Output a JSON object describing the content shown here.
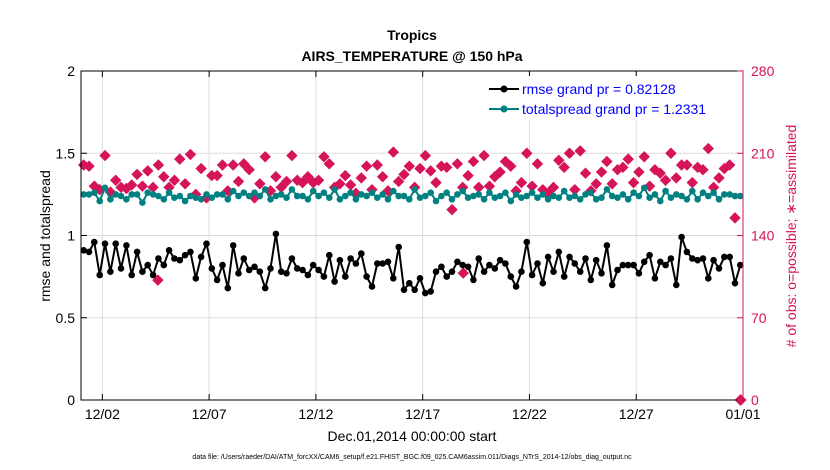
{
  "chart_data": {
    "type": "line",
    "title": "Tropics",
    "subtitle": "AIRS_TEMPERATURE @ 150 hPa",
    "xlabel": "Dec.01,2014 00:00:00 start",
    "ylabel_left": "rmse and totalspread",
    "ylabel_right": "# of obs: o=possible; ∗=assimilated",
    "footnote": "data file: /Users/raeder/DAI/ATM_forcXX/CAM6_setup/f.e21.FHIST_BGC.f09_025.CAM6assim.011/Diags_NTrS_2014-12/obs_diag_output.nc",
    "xlim": [
      0,
      31
    ],
    "ylim_left": [
      0,
      2
    ],
    "ylim_right": [
      0,
      280
    ],
    "x_ticks": [
      1,
      6,
      11,
      16,
      21,
      26,
      31
    ],
    "x_tick_labels": [
      "12/02",
      "12/07",
      "12/12",
      "12/17",
      "12/22",
      "12/27",
      "01/01"
    ],
    "y_left_ticks": [
      0,
      0.5,
      1,
      1.5,
      2
    ],
    "y_left_tick_labels": [
      "0",
      "0.5",
      "1",
      "1.5",
      "2"
    ],
    "y_right_ticks": [
      0,
      70,
      140,
      210,
      280
    ],
    "y_right_tick_labels": [
      "0",
      "70",
      "140",
      "210",
      "280"
    ],
    "grid": true,
    "legend_position": "top-right",
    "colors": {
      "rmse": "#000000",
      "totalspread": "#008080",
      "obs": "#d6145a",
      "right_axis": "#d6145a"
    },
    "series": [
      {
        "name": "rmse grand pr = 0.82128",
        "axis": "left",
        "x": [
          0.125,
          0.375,
          0.625,
          0.875,
          1.125,
          1.375,
          1.625,
          1.875,
          2.125,
          2.375,
          2.625,
          2.875,
          3.125,
          3.375,
          3.625,
          3.875,
          4.125,
          4.375,
          4.625,
          4.875,
          5.125,
          5.375,
          5.625,
          5.875,
          6.125,
          6.375,
          6.625,
          6.875,
          7.125,
          7.375,
          7.625,
          7.875,
          8.125,
          8.375,
          8.625,
          8.875,
          9.125,
          9.375,
          9.625,
          9.875,
          10.125,
          10.375,
          10.625,
          10.875,
          11.125,
          11.375,
          11.625,
          11.875,
          12.125,
          12.375,
          12.625,
          12.875,
          13.125,
          13.375,
          13.625,
          13.875,
          14.125,
          14.375,
          14.625,
          14.875,
          15.125,
          15.375,
          15.625,
          15.875,
          16.125,
          16.375,
          16.625,
          16.875,
          17.125,
          17.375,
          17.625,
          17.875,
          18.125,
          18.375,
          18.625,
          18.875,
          19.125,
          19.375,
          19.625,
          19.875,
          20.125,
          20.375,
          20.625,
          20.875,
          21.125,
          21.375,
          21.625,
          21.875,
          22.125,
          22.375,
          22.625,
          22.875,
          23.125,
          23.375,
          23.625,
          23.875,
          24.125,
          24.375,
          24.625,
          24.875,
          25.125,
          25.375,
          25.625,
          25.875,
          26.125,
          26.375,
          26.625,
          26.875,
          27.125,
          27.375,
          27.625,
          27.875,
          28.125,
          28.375,
          28.625,
          28.875,
          29.125,
          29.375,
          29.625,
          29.875,
          30.125,
          30.375,
          30.625,
          30.875
        ],
        "values": [
          0.91,
          0.9,
          0.96,
          0.76,
          0.95,
          0.78,
          0.95,
          0.8,
          0.94,
          0.76,
          0.9,
          0.78,
          0.82,
          0.76,
          0.86,
          0.82,
          0.91,
          0.86,
          0.85,
          0.88,
          0.9,
          0.74,
          0.87,
          0.95,
          0.8,
          0.73,
          0.82,
          0.68,
          0.94,
          0.77,
          0.86,
          0.79,
          0.81,
          0.78,
          0.68,
          0.8,
          1.01,
          0.78,
          0.77,
          0.86,
          0.8,
          0.79,
          0.76,
          0.82,
          0.79,
          0.75,
          0.88,
          0.72,
          0.85,
          0.75,
          0.86,
          0.83,
          0.89,
          0.75,
          0.69,
          0.83,
          0.83,
          0.84,
          0.74,
          0.93,
          0.67,
          0.71,
          0.67,
          0.74,
          0.65,
          0.66,
          0.78,
          0.81,
          0.75,
          0.78,
          0.84,
          0.82,
          0.81,
          0.73,
          0.86,
          0.78,
          0.82,
          0.8,
          0.85,
          0.83,
          0.75,
          0.69,
          0.78,
          0.96,
          0.76,
          0.83,
          0.71,
          0.87,
          0.78,
          0.9,
          0.75,
          0.87,
          0.83,
          0.78,
          0.86,
          0.73,
          0.85,
          0.77,
          0.94,
          0.7,
          0.79,
          0.82,
          0.82,
          0.82,
          0.77,
          0.84,
          0.88,
          0.74,
          0.84,
          0.82,
          0.86,
          0.7,
          0.99,
          0.9,
          0.86,
          0.85,
          0.86,
          0.74,
          0.85,
          0.8,
          0.87,
          0.87,
          0.71,
          0.82
        ]
      },
      {
        "name": "totalspread grand pr = 1.2331",
        "axis": "left",
        "x": [
          0.125,
          0.375,
          0.625,
          0.875,
          1.125,
          1.375,
          1.625,
          1.875,
          2.125,
          2.375,
          2.625,
          2.875,
          3.125,
          3.375,
          3.625,
          3.875,
          4.125,
          4.375,
          4.625,
          4.875,
          5.125,
          5.375,
          5.625,
          5.875,
          6.125,
          6.375,
          6.625,
          6.875,
          7.125,
          7.375,
          7.625,
          7.875,
          8.125,
          8.375,
          8.625,
          8.875,
          9.125,
          9.375,
          9.625,
          9.875,
          10.125,
          10.375,
          10.625,
          10.875,
          11.125,
          11.375,
          11.625,
          11.875,
          12.125,
          12.375,
          12.625,
          12.875,
          13.125,
          13.375,
          13.625,
          13.875,
          14.125,
          14.375,
          14.625,
          14.875,
          15.125,
          15.375,
          15.625,
          15.875,
          16.125,
          16.375,
          16.625,
          16.875,
          17.125,
          17.375,
          17.625,
          17.875,
          18.125,
          18.375,
          18.625,
          18.875,
          19.125,
          19.375,
          19.625,
          19.875,
          20.125,
          20.375,
          20.625,
          20.875,
          21.125,
          21.375,
          21.625,
          21.875,
          22.125,
          22.375,
          22.625,
          22.875,
          23.125,
          23.375,
          23.625,
          23.875,
          24.125,
          24.375,
          24.625,
          24.875,
          25.125,
          25.375,
          25.625,
          25.875,
          26.125,
          26.375,
          26.625,
          26.875,
          27.125,
          27.375,
          27.625,
          27.875,
          28.125,
          28.375,
          28.625,
          28.875,
          29.125,
          29.375,
          29.625,
          29.875,
          30.125,
          30.375,
          30.625,
          30.875
        ],
        "values": [
          1.25,
          1.25,
          1.26,
          1.21,
          1.29,
          1.22,
          1.25,
          1.24,
          1.22,
          1.25,
          1.25,
          1.2,
          1.26,
          1.25,
          1.24,
          1.22,
          1.26,
          1.23,
          1.24,
          1.21,
          1.24,
          1.23,
          1.22,
          1.25,
          1.23,
          1.25,
          1.25,
          1.22,
          1.27,
          1.24,
          1.26,
          1.24,
          1.26,
          1.24,
          1.28,
          1.22,
          1.24,
          1.25,
          1.23,
          1.28,
          1.24,
          1.24,
          1.22,
          1.27,
          1.24,
          1.26,
          1.23,
          1.28,
          1.22,
          1.24,
          1.26,
          1.22,
          1.25,
          1.24,
          1.26,
          1.23,
          1.25,
          1.22,
          1.27,
          1.24,
          1.24,
          1.22,
          1.28,
          1.23,
          1.24,
          1.26,
          1.21,
          1.24,
          1.26,
          1.22,
          1.25,
          1.27,
          1.23,
          1.24,
          1.25,
          1.22,
          1.26,
          1.23,
          1.24,
          1.26,
          1.21,
          1.25,
          1.23,
          1.24,
          1.26,
          1.23,
          1.25,
          1.22,
          1.24,
          1.23,
          1.27,
          1.23,
          1.24,
          1.22,
          1.25,
          1.26,
          1.22,
          1.23,
          1.28,
          1.24,
          1.23,
          1.25,
          1.22,
          1.26,
          1.24,
          1.29,
          1.23,
          1.25,
          1.21,
          1.27,
          1.23,
          1.25,
          1.24,
          1.22,
          1.27,
          1.22,
          1.26,
          1.24,
          1.26,
          1.22,
          1.25,
          1.25,
          1.24,
          1.24
        ]
      },
      {
        "name": "# of obs possible",
        "axis": "right",
        "marker": "diamond",
        "x": [
          0.125,
          0.375,
          0.625,
          0.875,
          1.125,
          1.375,
          1.625,
          1.875,
          2.125,
          2.375,
          2.625,
          2.875,
          3.125,
          3.375,
          3.625,
          3.875,
          4.125,
          4.375,
          4.625,
          4.875,
          5.125,
          5.375,
          5.625,
          5.875,
          6.125,
          6.375,
          6.625,
          6.875,
          7.125,
          7.375,
          7.625,
          7.875,
          8.125,
          8.375,
          8.625,
          8.875,
          9.125,
          9.375,
          9.625,
          9.875,
          10.125,
          10.375,
          10.625,
          10.875,
          11.125,
          11.375,
          11.625,
          11.875,
          12.125,
          12.375,
          12.625,
          12.875,
          13.125,
          13.375,
          13.625,
          13.875,
          14.125,
          14.375,
          14.625,
          14.875,
          15.125,
          15.375,
          15.625,
          15.875,
          16.125,
          16.375,
          16.625,
          16.875,
          17.125,
          17.375,
          17.625,
          17.875,
          18.125,
          18.375,
          18.625,
          18.875,
          19.125,
          19.375,
          19.625,
          19.875,
          20.125,
          20.375,
          20.625,
          20.875,
          21.125,
          21.375,
          21.625,
          21.875,
          22.125,
          22.375,
          22.625,
          22.875,
          23.125,
          23.375,
          23.625,
          23.875,
          24.125,
          24.375,
          24.625,
          24.875,
          25.125,
          25.375,
          25.625,
          25.875,
          26.125,
          26.375,
          26.625,
          26.875,
          27.125,
          27.375,
          27.625,
          27.875,
          28.125,
          28.375,
          28.625,
          28.875,
          29.125,
          29.375,
          29.625,
          29.875,
          30.125,
          30.375,
          30.625,
          30.875
        ],
        "values": [
          200,
          199,
          182,
          179,
          208,
          177,
          187,
          181,
          180,
          183,
          192,
          182,
          195,
          181,
          200,
          190,
          181,
          187,
          205,
          184,
          209,
          175,
          197,
          172,
          191,
          191,
          200,
          178,
          200,
          186,
          201,
          196,
          172,
          184,
          207,
          178,
          190,
          181,
          186,
          208,
          187,
          185,
          190,
          185,
          187,
          207,
          201,
          181,
          184,
          191,
          183,
          176,
          189,
          199,
          179,
          200,
          190,
          178,
          211,
          186,
          192,
          199,
          181,
          197,
          208,
          195,
          185,
          199,
          198,
          162,
          201,
          181,
          191,
          203,
          181,
          208,
          182,
          190,
          194,
          203,
          199,
          178,
          185,
          210,
          182,
          201,
          179,
          176,
          181,
          204,
          198,
          210,
          179,
          212,
          193,
          178,
          184,
          194,
          203,
          184,
          196,
          198,
          205,
          185,
          194,
          207,
          182,
          196,
          193,
          187,
          210,
          189,
          200,
          200,
          185,
          198,
          196,
          214,
          181,
          189,
          197,
          200,
          155,
          0
        ]
      },
      {
        "name": "# of obs assimilated",
        "axis": "right",
        "marker": "asterisk",
        "x": [
          3.6,
          17.9,
          30.9
        ],
        "values": [
          102,
          108,
          0
        ]
      }
    ]
  }
}
